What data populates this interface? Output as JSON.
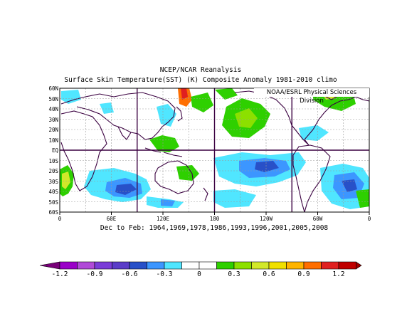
{
  "header": {
    "title": "NCEP/NCAR Reanalysis",
    "subtitle": "Surface Skin Temperature(SST) (K) Composite Anomaly 1981-2010 climo",
    "credit": "NOAA/ESRL Physical Sciences Division"
  },
  "map": {
    "lat_labels": [
      "60N",
      "50N",
      "40N",
      "30N",
      "20N",
      "10N",
      "EQ",
      "10S",
      "20S",
      "30S",
      "40S",
      "50S",
      "60S"
    ],
    "lon_labels": [
      "0",
      "60E",
      "120E",
      "180",
      "120W",
      "60W",
      "0"
    ],
    "footer": "Dec to Feb: 1964,1969,1978,1986,1993,1996,2001,2005,2008",
    "lat_range": [
      -60,
      60
    ],
    "lon_range": [
      0,
      360
    ],
    "grid_style": "dashed"
  },
  "colorbar": {
    "labels": [
      "-1.2",
      "-0.9",
      "-0.6",
      "-0.3",
      "0",
      "0.3",
      "0.6",
      "0.9",
      "1.2"
    ],
    "colors": [
      "#9a00c8",
      "#b04ad8",
      "#5a3cc8",
      "#2850c8",
      "#3c96ff",
      "#50e6ff",
      "#ffffff",
      "#ffffff",
      "#2ed000",
      "#8ce000",
      "#d2e82a",
      "#f0e000",
      "#ffb400",
      "#ff6e00",
      "#e02020"
    ],
    "end_colors": {
      "low": "#780078",
      "high": "#a00000"
    }
  }
}
